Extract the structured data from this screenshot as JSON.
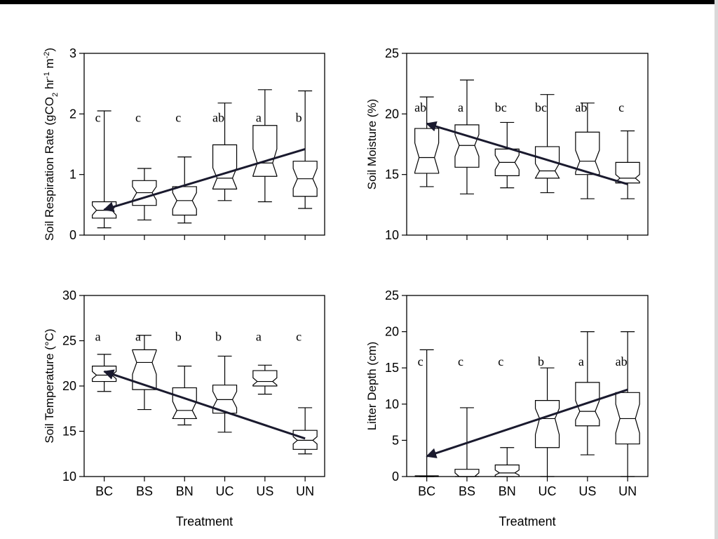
{
  "colors": {
    "ink": "#000000",
    "background": "#ffffff",
    "arrow": "#1a1a2e"
  },
  "chart_data": [
    {
      "type": "box",
      "notched": true,
      "ylabel_parts": [
        "Soil Respiration Rate (gCO",
        "2",
        " hr",
        "-1",
        " m",
        "-2",
        ")"
      ],
      "yticks": [
        0,
        1,
        2,
        3
      ],
      "ylim": [
        0,
        3
      ],
      "categories": [
        "BC",
        "BS",
        "BN",
        "UC",
        "US",
        "UN"
      ],
      "show_xticklabels": false,
      "xlabel": "",
      "boxes": [
        {
          "min": 0.12,
          "q1": 0.28,
          "median": 0.41,
          "q3": 0.55,
          "max": 2.05,
          "notch": [
            0.33,
            0.49
          ]
        },
        {
          "min": 0.25,
          "q1": 0.49,
          "median": 0.7,
          "q3": 0.9,
          "max": 1.1,
          "notch": [
            0.58,
            0.8
          ]
        },
        {
          "min": 0.2,
          "q1": 0.33,
          "median": 0.57,
          "q3": 0.8,
          "max": 1.29,
          "notch": [
            0.43,
            0.7
          ]
        },
        {
          "min": 0.57,
          "q1": 0.76,
          "median": 0.94,
          "q3": 1.49,
          "max": 2.18,
          "notch": [
            0.77,
            1.11
          ]
        },
        {
          "min": 0.55,
          "q1": 0.97,
          "median": 1.19,
          "q3": 1.81,
          "max": 2.4,
          "notch": [
            0.98,
            1.42
          ]
        },
        {
          "min": 0.44,
          "q1": 0.64,
          "median": 0.93,
          "q3": 1.22,
          "max": 2.38,
          "notch": [
            0.77,
            1.1
          ]
        }
      ],
      "letters": [
        "c",
        "c",
        "c",
        "ab",
        "a",
        "b"
      ],
      "letter_y": 1.87,
      "trend": {
        "from": [
          6,
          1.42
        ],
        "to": [
          1,
          0.42
        ]
      }
    },
    {
      "type": "box",
      "notched": true,
      "ylabel_parts": [
        "Soil Moisture (%)"
      ],
      "yticks": [
        10,
        15,
        20,
        25
      ],
      "ylim": [
        10,
        25
      ],
      "categories": [
        "BC",
        "BS",
        "BN",
        "UC",
        "US",
        "UN"
      ],
      "show_xticklabels": false,
      "xlabel": "",
      "boxes": [
        {
          "min": 14,
          "q1": 15.1,
          "median": 16.4,
          "q3": 18.8,
          "max": 21.4,
          "notch": [
            15.2,
            17.6
          ]
        },
        {
          "min": 13.4,
          "q1": 15.6,
          "median": 17.4,
          "q3": 19.1,
          "max": 22.8,
          "notch": [
            16.5,
            18.3
          ]
        },
        {
          "min": 13.9,
          "q1": 14.9,
          "median": 16,
          "q3": 17.1,
          "max": 19.3,
          "notch": [
            15.4,
            16.6
          ]
        },
        {
          "min": 13.5,
          "q1": 14.7,
          "median": 15.3,
          "q3": 17.3,
          "max": 21.6,
          "notch": [
            14.7,
            15.9
          ]
        },
        {
          "min": 13,
          "q1": 15,
          "median": 16.1,
          "q3": 18.5,
          "max": 20.9,
          "notch": [
            15.2,
            17
          ]
        },
        {
          "min": 13,
          "q1": 14.3,
          "median": 14.7,
          "q3": 16,
          "max": 18.6,
          "notch": [
            14.4,
            15
          ]
        }
      ],
      "letters": [
        "ab",
        "a",
        "bc",
        "bc",
        "ab",
        "c"
      ],
      "letter_y": 20.2,
      "trend": {
        "from": [
          6,
          14.2
        ],
        "to": [
          1,
          19.2
        ]
      }
    },
    {
      "type": "box",
      "notched": true,
      "ylabel_parts": [
        "Soil Temperature (°C)"
      ],
      "yticks": [
        10,
        15,
        20,
        25,
        30
      ],
      "ylim": [
        10,
        30
      ],
      "categories": [
        "BC",
        "BS",
        "BN",
        "UC",
        "US",
        "UN"
      ],
      "show_xticklabels": true,
      "xlabel": "Treatment",
      "boxes": [
        {
          "min": 19.4,
          "q1": 20.5,
          "median": 21.2,
          "q3": 22.2,
          "max": 23.5,
          "notch": [
            20.8,
            21.6
          ]
        },
        {
          "min": 17.4,
          "q1": 19.6,
          "median": 22.6,
          "q3": 24,
          "max": 25.6,
          "notch": [
            21.3,
            23.9
          ]
        },
        {
          "min": 15.7,
          "q1": 16.4,
          "median": 17.3,
          "q3": 19.8,
          "max": 22.2,
          "notch": [
            16.3,
            18.3
          ]
        },
        {
          "min": 14.9,
          "q1": 17,
          "median": 18.5,
          "q3": 20.1,
          "max": 23.3,
          "notch": [
            17.6,
            19.4
          ]
        },
        {
          "min": 19.1,
          "q1": 20,
          "median": 20.5,
          "q3": 21.7,
          "max": 22.3,
          "notch": [
            20.1,
            20.9
          ]
        },
        {
          "min": 12.5,
          "q1": 13,
          "median": 14,
          "q3": 15.1,
          "max": 17.6,
          "notch": [
            13.6,
            14.4
          ]
        }
      ],
      "letters": [
        "a",
        "a",
        "b",
        "b",
        "a",
        "c"
      ],
      "letter_y": 25,
      "trend": {
        "from": [
          6,
          14.2
        ],
        "to": [
          1,
          21.6
        ]
      }
    },
    {
      "type": "box",
      "notched": true,
      "ylabel_parts": [
        "Litter Depth (cm)"
      ],
      "yticks": [
        0,
        5,
        10,
        15,
        20,
        25
      ],
      "ylim": [
        0,
        25
      ],
      "categories": [
        "BC",
        "BS",
        "BN",
        "UC",
        "US",
        "UN"
      ],
      "show_xticklabels": true,
      "xlabel": "Treatment",
      "boxes": [
        {
          "min": 0,
          "q1": 0,
          "median": 0,
          "q3": 0.1,
          "max": 17.5,
          "notch": [
            0,
            0.1
          ]
        },
        {
          "min": 0,
          "q1": 0,
          "median": 0,
          "q3": 1,
          "max": 9.5,
          "notch": [
            0,
            0.5
          ]
        },
        {
          "min": 0,
          "q1": 0,
          "median": 0.5,
          "q3": 1.6,
          "max": 4,
          "notch": [
            0.2,
            0.9
          ]
        },
        {
          "min": 0,
          "q1": 4,
          "median": 8,
          "q3": 10.5,
          "max": 15,
          "notch": [
            5.8,
            9.4
          ]
        },
        {
          "min": 3,
          "q1": 7,
          "median": 9,
          "q3": 13,
          "max": 20,
          "notch": [
            7.8,
            10.5
          ]
        },
        {
          "min": 0,
          "q1": 4.5,
          "median": 8,
          "q3": 11.6,
          "max": 20,
          "notch": [
            6,
            10
          ]
        }
      ],
      "letters": [
        "c",
        "c",
        "c",
        "b",
        "a",
        "ab"
      ],
      "letter_y": 15.3,
      "trend": {
        "from": [
          6,
          12
        ],
        "to": [
          1,
          2.8
        ]
      }
    }
  ]
}
